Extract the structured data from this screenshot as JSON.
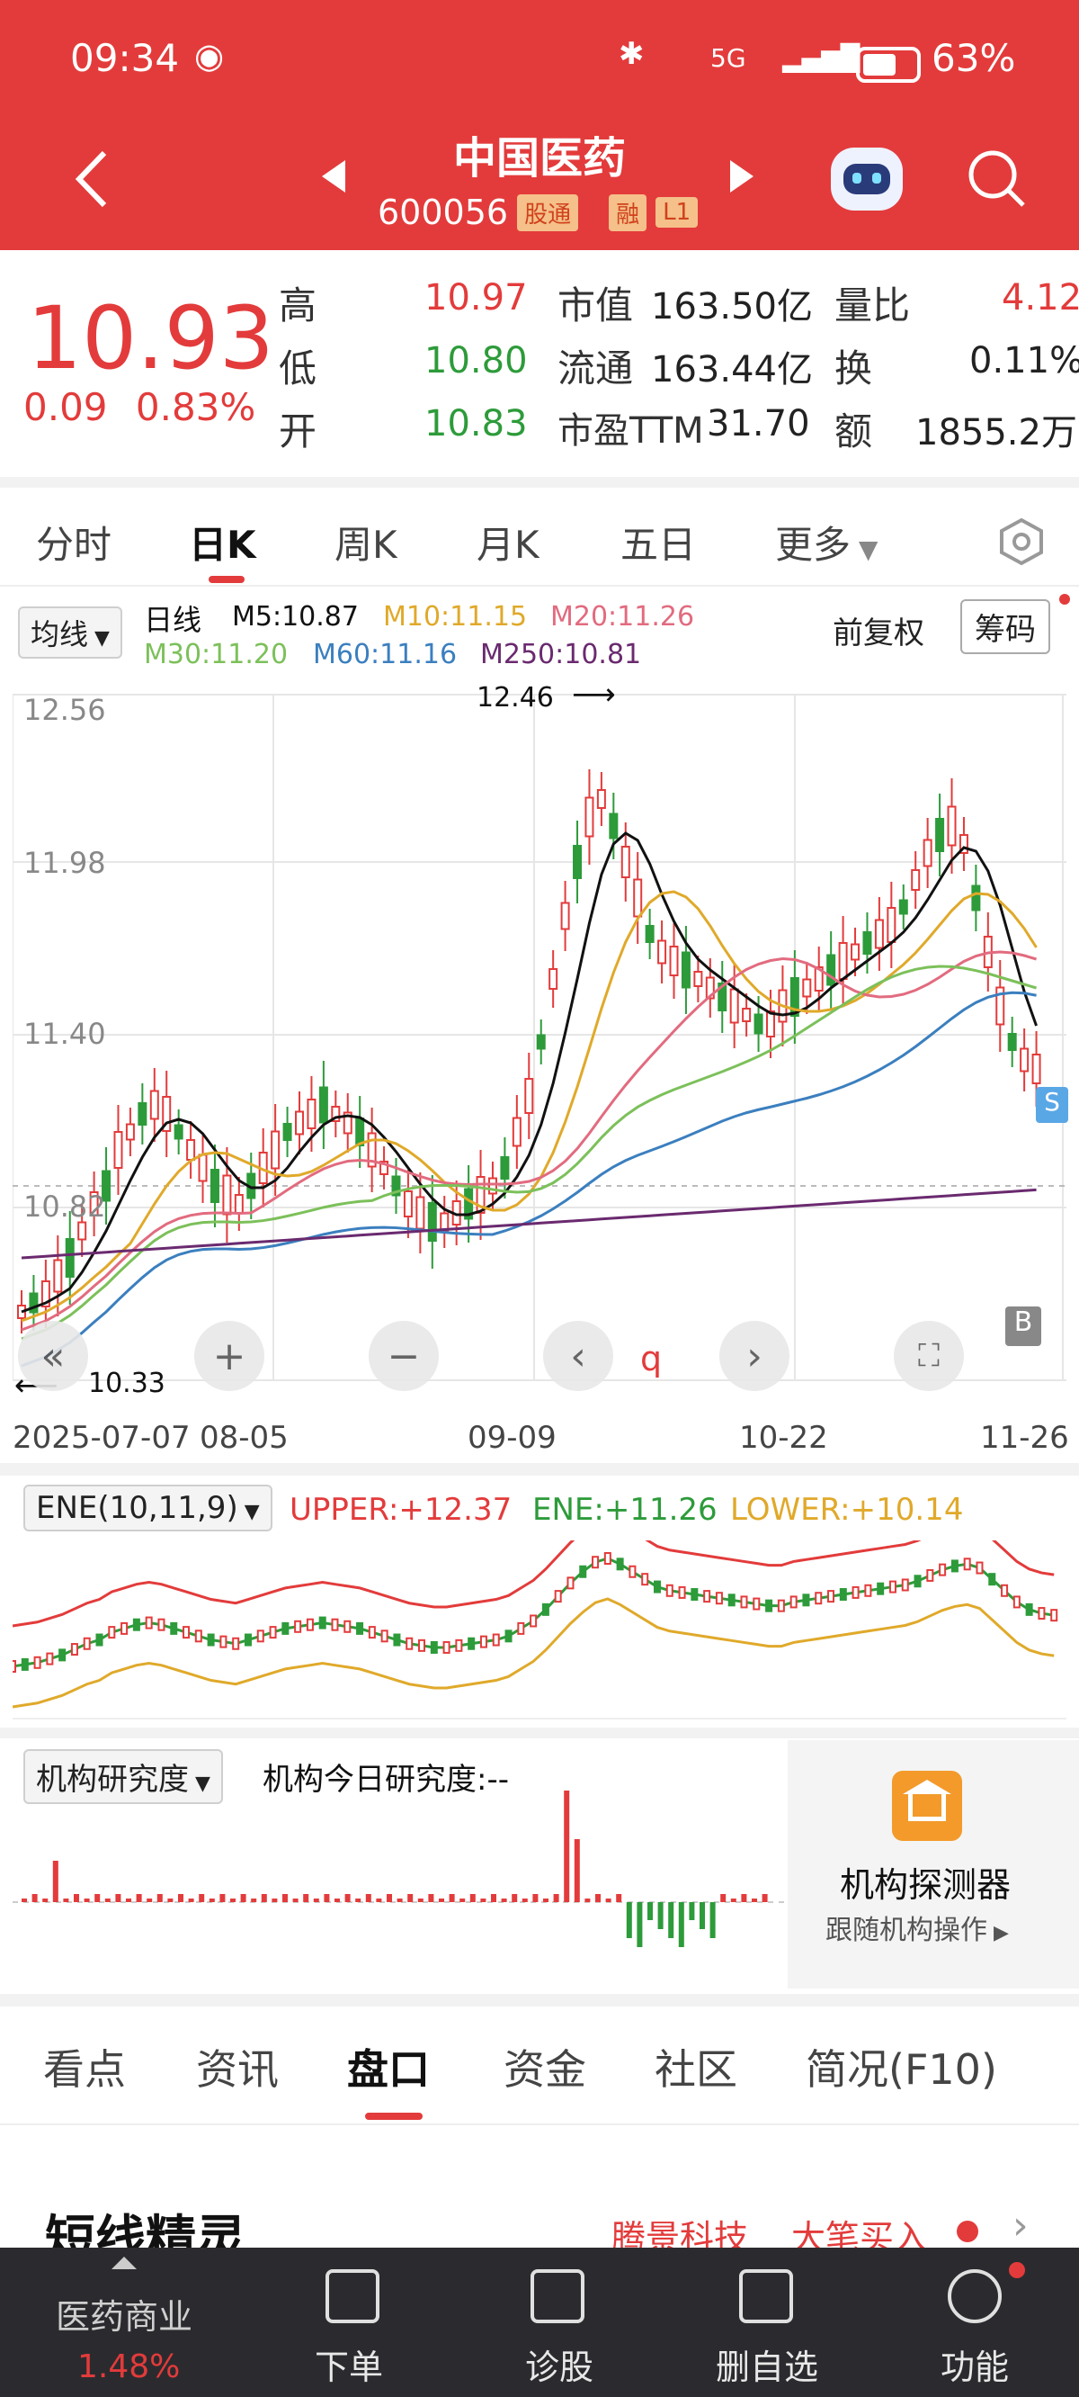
{
  "status_bar": {
    "time": "09:34",
    "battery": "63%",
    "net": "5G"
  },
  "header": {
    "title": "中国医药",
    "code": "600056",
    "tags": [
      "股通",
      "融",
      "L1"
    ]
  },
  "quote": {
    "price": "10.93",
    "change": "0.09",
    "change_pct": "0.83%",
    "high_label": "高",
    "high": "10.97",
    "low_label": "低",
    "low": "10.80",
    "open_label": "开",
    "open": "10.83",
    "mktcap_label": "市值",
    "mktcap": "163.50亿",
    "float_label": "流通",
    "float": "163.44亿",
    "pe_label": "市盈TTM",
    "pe": "31.70",
    "vr_label": "量比",
    "vr": "4.12",
    "turn_label": "换",
    "turn": "0.11%",
    "amount_label": "额",
    "amount": "1855.2万"
  },
  "chart_tabs": [
    "分时",
    "日K",
    "周K",
    "月K",
    "五日",
    "更多"
  ],
  "ma_bar": {
    "selector": "均线",
    "period": "日线",
    "m5": "M5:10.87",
    "m10": "M10:11.15",
    "m20": "M20:11.26",
    "m30": "M30:11.20",
    "m60": "M60:11.16",
    "m250": "M250:10.81",
    "fuquan": "前复权",
    "chouma": "筹码"
  },
  "colors": {
    "up": "#e33b3b",
    "down": "#2d9b3a",
    "m5": "#111111",
    "m10": "#e0a92a",
    "m20": "#e26b7f",
    "m30": "#7cc05a",
    "m60": "#3b7fbf",
    "m250": "#6a2a6f"
  },
  "kline": {
    "y_ticks": [
      "12.56",
      "11.98",
      "11.40",
      "10.82"
    ],
    "x_ticks": [
      "2025-07-07",
      "08-05",
      "09-09",
      "10-22",
      "11-26"
    ],
    "max_label": "12.46",
    "min_label": "10.33",
    "b_marker": "B",
    "s_marker": "S",
    "q_marker": "q"
  },
  "ene": {
    "selector": "ENE(10,11,9)",
    "upper": "UPPER:+12.37",
    "ene": "ENE:+11.26",
    "lower": "LOWER:+10.14"
  },
  "inst": {
    "selector": "机构研究度",
    "today": "机构今日研究度:--",
    "detector_title": "机构探测器",
    "detector_sub": "跟随机构操作"
  },
  "bottom_tabs": [
    "看点",
    "资讯",
    "盘口",
    "资金",
    "社区",
    "简况(F10)"
  ],
  "short_line": {
    "title": "短线精灵",
    "stock": "腾景科技",
    "action": "大笔买入"
  },
  "bottom_bar": {
    "sector": "医药商业",
    "sector_pct": "1.48%",
    "order": "下单",
    "diagnose": "诊股",
    "delete_fav": "删自选",
    "func": "功能"
  }
}
